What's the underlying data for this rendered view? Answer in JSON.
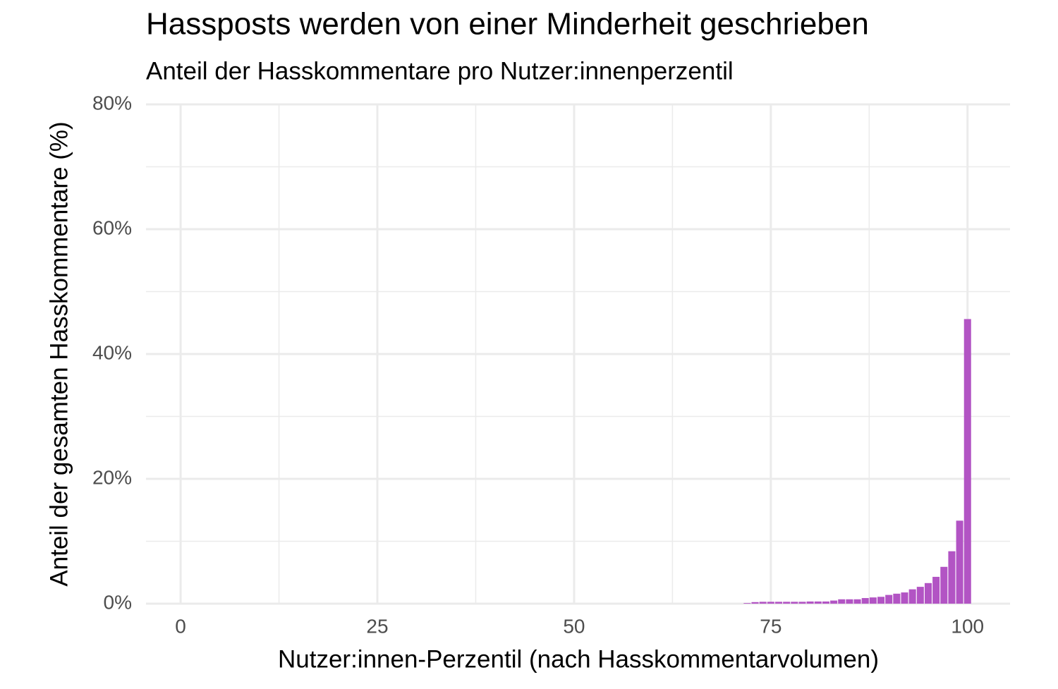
{
  "chart_data": {
    "type": "bar",
    "title": "Hassposts werden von einer Minderheit geschrieben",
    "subtitle": "Anteil der Hasskommentare pro Nutzer:innenperzentil",
    "x_label": "Nutzer:innen-Perzentil (nach Hasskommentarvolumen)",
    "y_label": "Anteil der gesamten Hasskommentare (%)",
    "x": [
      72,
      73,
      74,
      75,
      76,
      77,
      78,
      79,
      80,
      81,
      82,
      83,
      84,
      85,
      86,
      87,
      88,
      89,
      90,
      91,
      92,
      93,
      94,
      95,
      96,
      97,
      98,
      99,
      100
    ],
    "values": [
      0.1,
      0.25,
      0.3,
      0.3,
      0.3,
      0.3,
      0.3,
      0.3,
      0.35,
      0.35,
      0.35,
      0.5,
      0.7,
      0.7,
      0.7,
      0.9,
      1.0,
      1.1,
      1.4,
      1.6,
      1.8,
      2.3,
      2.7,
      3.3,
      4.3,
      5.9,
      8.4,
      13.3,
      45.6
    ],
    "color": "#b254c4",
    "xlim": [
      -4.4,
      105.4
    ],
    "xticks": [
      0,
      25,
      50,
      75,
      100
    ],
    "xminor": [
      12.5,
      37.5,
      62.5,
      87.5
    ],
    "ylim": [
      0,
      80
    ],
    "yticks": [
      {
        "value": 0,
        "label": "0%"
      },
      {
        "value": 20,
        "label": "20%"
      },
      {
        "value": 40,
        "label": "40%"
      },
      {
        "value": 60,
        "label": "60%"
      },
      {
        "value": 80,
        "label": "80%"
      }
    ],
    "yminor": [
      10,
      30,
      50,
      70
    ],
    "grid": true
  }
}
